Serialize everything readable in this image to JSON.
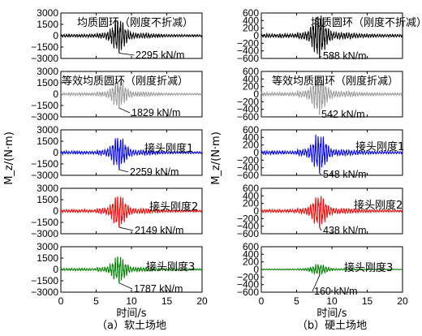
{
  "y_axis_label": "M_z/(N·m)",
  "chart_data": [
    {
      "type": "line",
      "subtitle": "（a）软土场地",
      "xlabel": "时间/s",
      "x_ticks": [
        "0",
        "5",
        "10",
        "15",
        "20"
      ],
      "xlim": [
        0,
        20
      ],
      "ylim": [
        -3000,
        3000
      ],
      "y_ticks": [
        "3000",
        "1500",
        "0",
        "−1500",
        "−3000"
      ],
      "y_tick_values": [
        3000,
        1500,
        0,
        -1500,
        -3000
      ],
      "panels": [
        {
          "name": "均质圆环（刚度不折减）",
          "annotation": "2295 kN/m",
          "peak": 2295,
          "color": "#000000"
        },
        {
          "name": "等效均质圆环（刚度折减）",
          "annotation": "1829 kN/m",
          "peak": 1829,
          "color": "#999999"
        },
        {
          "name": "接头刚度1",
          "annotation": "2259 kN/m",
          "peak": 2259,
          "color": "#0000ff"
        },
        {
          "name": "接头刚度2",
          "annotation": "2149 kN/m",
          "peak": 2149,
          "color": "#ff0000"
        },
        {
          "name": "接头刚度3",
          "annotation": "1787 kN/m",
          "peak": 1787,
          "color": "#008000"
        }
      ]
    },
    {
      "type": "line",
      "subtitle": "（b）硬土场地",
      "xlabel": "时间/s",
      "x_ticks": [
        "0",
        "5",
        "10",
        "15",
        "20"
      ],
      "xlim": [
        0,
        20
      ],
      "ylim": [
        -600,
        600
      ],
      "y_ticks": [
        "600",
        "400",
        "200",
        "0",
        "−200",
        "−400",
        "−600"
      ],
      "y_tick_values": [
        600,
        400,
        200,
        0,
        -200,
        -400,
        -600
      ],
      "panels": [
        {
          "name": "均质圆环（刚度不折减）",
          "annotation": "588 kN/m",
          "peak": 588,
          "color": "#000000"
        },
        {
          "name": "等效均质圆环（刚度折减）",
          "annotation": "542 kN/m",
          "peak": 542,
          "color": "#999999"
        },
        {
          "name": "接头刚度1",
          "annotation": "548 kN/m",
          "peak": 548,
          "color": "#0000ff"
        },
        {
          "name": "接头刚度2",
          "annotation": "438 kN/m",
          "peak": 438,
          "color": "#ff0000"
        },
        {
          "name": "接头刚度3",
          "annotation": "160 kN/m",
          "peak": 160,
          "color": "#008000"
        }
      ]
    }
  ]
}
